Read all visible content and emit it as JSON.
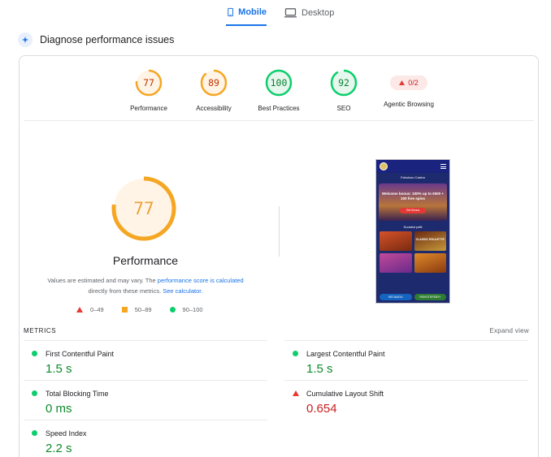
{
  "tabs": [
    {
      "label": "Mobile",
      "icon": "mobile-phone-icon",
      "active": true
    },
    {
      "label": "Desktop",
      "icon": "desktop-monitor-icon",
      "active": false
    }
  ],
  "header": {
    "title": "Diagnose performance issues",
    "icon": "diagnose-icon"
  },
  "categories": [
    {
      "label": "Performance",
      "score": "77",
      "status": "average",
      "color": "#e8a33d"
    },
    {
      "label": "Accessibility",
      "score": "89",
      "status": "average",
      "color": "#e8a33d"
    },
    {
      "label": "Best Practices",
      "score": "100",
      "status": "good",
      "color": "#0cce6b"
    },
    {
      "label": "SEO",
      "score": "92",
      "status": "good",
      "color": "#0cce6b"
    },
    {
      "label": "Agentic Browsing",
      "score": "0/2",
      "status": "fail",
      "color": "#c5221f"
    }
  ],
  "summary": {
    "score": "77",
    "title": "Performance",
    "note_part1": "Values are estimated and may vary. The ",
    "note_link1": "performance score is calculated",
    "note_part2": " directly from these metrics. ",
    "note_link2": "See calculator."
  },
  "legend": [
    {
      "range": "0–49",
      "shape": "triangle",
      "color": "#e53935"
    },
    {
      "range": "50–89",
      "shape": "square",
      "color": "#f5a623"
    },
    {
      "range": "90–100",
      "shape": "circle",
      "color": "#0cce6b"
    }
  ],
  "screenshot": {
    "site_title": "Fabuloso Casino",
    "promo_text": "Welcome bonus: 100% up to €500 + 100 free spins",
    "cta": "Get Bonus",
    "section": "Suositut pelit",
    "game_label": "CLASSIC ROULETTE",
    "login": "KIRJAUDU",
    "register": "REKISTERÖIDY"
  },
  "metrics": {
    "label": "METRICS",
    "expand": "Expand view",
    "left": [
      {
        "name": "First Contentful Paint",
        "value": "1.5 s",
        "status": "good"
      },
      {
        "name": "Total Blocking Time",
        "value": "0 ms",
        "status": "good"
      },
      {
        "name": "Speed Index",
        "value": "2.2 s",
        "status": "good"
      }
    ],
    "right": [
      {
        "name": "Largest Contentful Paint",
        "value": "1.5 s",
        "status": "good"
      },
      {
        "name": "Cumulative Layout Shift",
        "value": "0.654",
        "status": "bad"
      }
    ]
  }
}
